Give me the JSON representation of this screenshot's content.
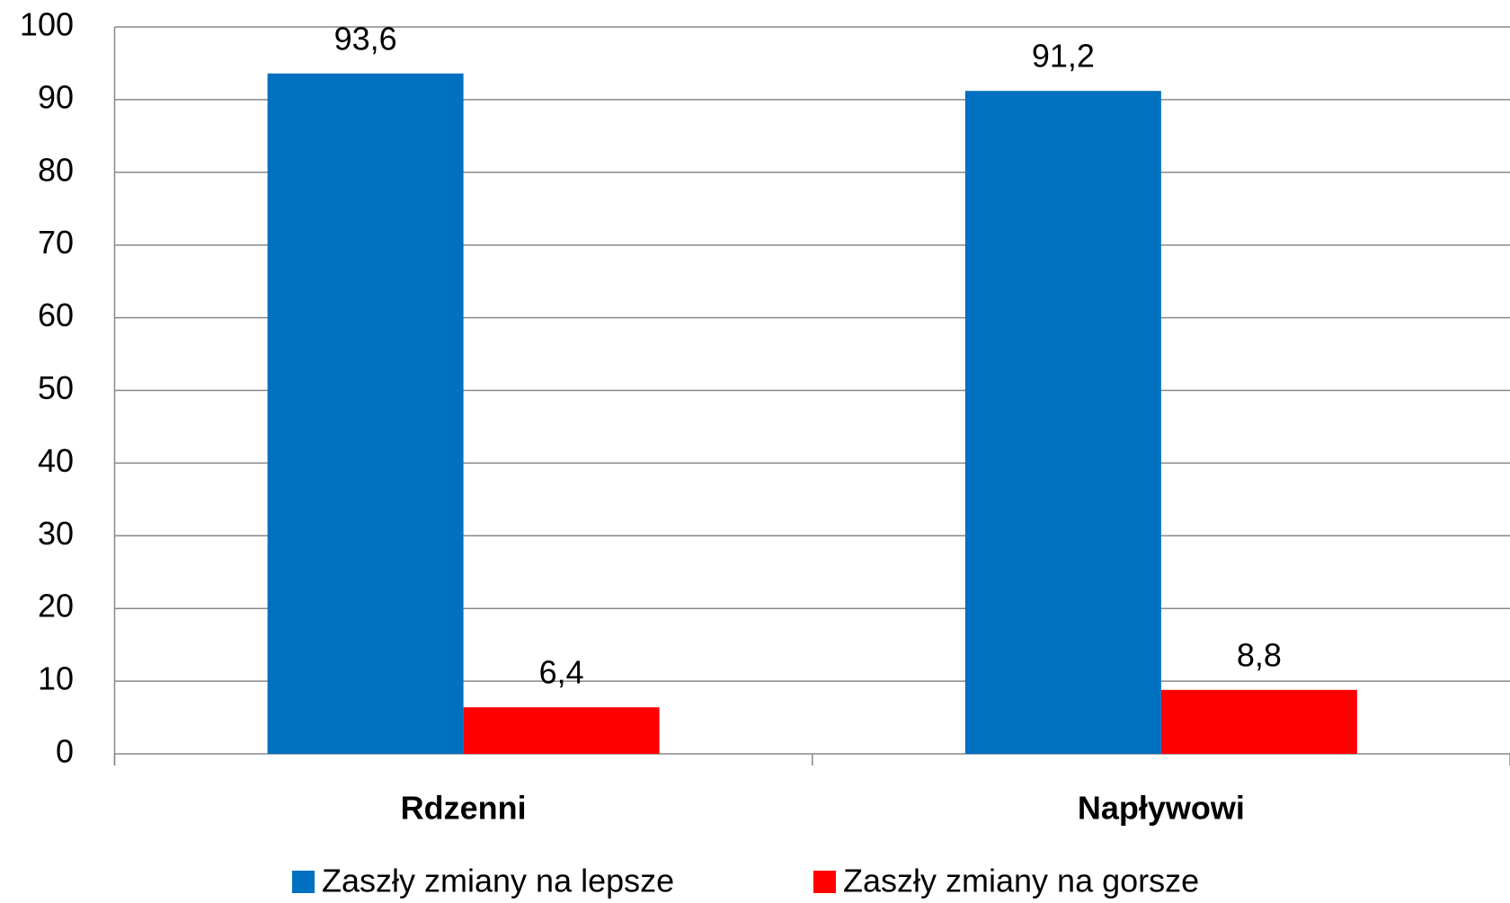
{
  "chart_data": {
    "type": "bar",
    "categories": [
      "Rdzenni",
      "Napływowi"
    ],
    "series": [
      {
        "name": "Zaszły zmiany na lepsze",
        "color": "#0070c0",
        "values": [
          93.6,
          91.2
        ],
        "value_labels": [
          "93,6",
          "91,2"
        ]
      },
      {
        "name": "Zaszły zmiany na gorsze",
        "color": "#ff0000",
        "values": [
          6.4,
          8.8
        ],
        "value_labels": [
          "6,4",
          "8,8"
        ]
      }
    ],
    "ylim": [
      0,
      100
    ],
    "yticks": [
      0,
      10,
      20,
      30,
      40,
      50,
      60,
      70,
      80,
      90,
      100
    ],
    "grid": true,
    "legend": "bottom"
  }
}
